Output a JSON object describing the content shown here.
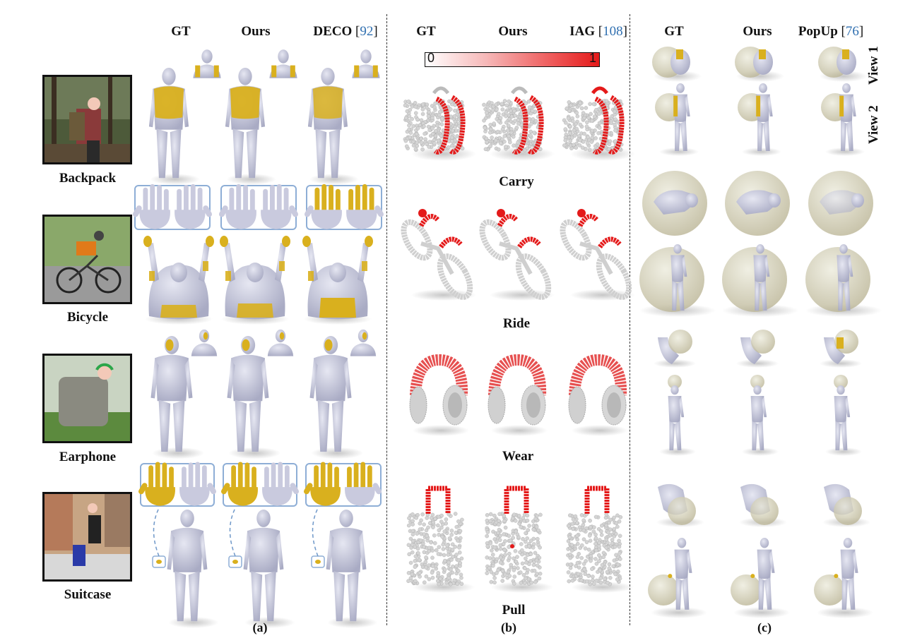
{
  "panel_a": {
    "headers": {
      "gt": "GT",
      "ours": "Ours",
      "deco": "DECO",
      "deco_ref": "92"
    },
    "objects": [
      "Backpack",
      "Bicycle",
      "Earphone",
      "Suitcase"
    ],
    "label": "(a)"
  },
  "panel_b": {
    "headers": {
      "gt": "GT",
      "ours": "Ours",
      "iag": "IAG",
      "iag_ref": "108"
    },
    "colorbar": {
      "min": "0",
      "max": "1",
      "low_color": "#ffffff",
      "high_color": "#e41a1a"
    },
    "affordances": [
      "Carry",
      "Ride",
      "Wear",
      "Pull"
    ],
    "label": "(b)"
  },
  "panel_c": {
    "headers": {
      "gt": "GT",
      "ours": "Ours",
      "popup": "PopUp",
      "popup_ref": "76"
    },
    "views": [
      "View 1",
      "View 2"
    ],
    "label": "(c)"
  },
  "colors": {
    "contact": "#d9b01e",
    "body": "#c9cade",
    "affordance": "#e41a1a",
    "citation": "#2f6fb0",
    "object_sphere": "#c8c3a4"
  }
}
